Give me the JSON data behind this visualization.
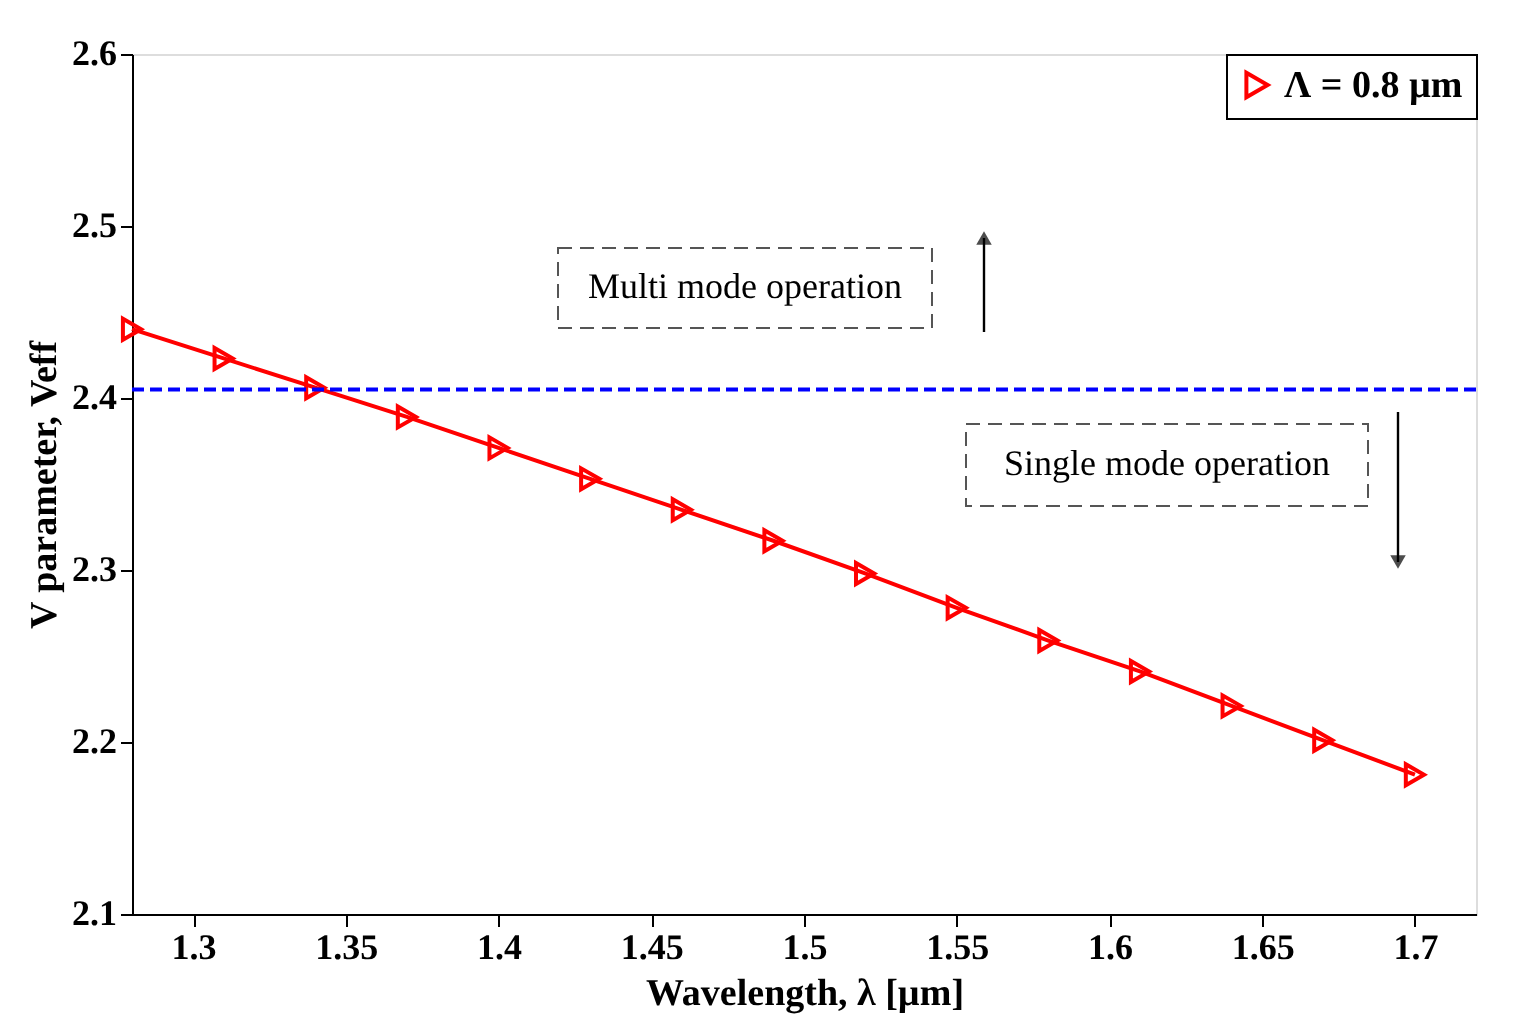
{
  "chart_data": {
    "type": "line",
    "xlabel": "Wavelength, λ [µm]",
    "ylabel": "V parameter, Veff",
    "x": [
      1.28,
      1.31,
      1.34,
      1.37,
      1.4,
      1.43,
      1.46,
      1.49,
      1.52,
      1.55,
      1.58,
      1.61,
      1.64,
      1.67,
      1.7
    ],
    "series": [
      {
        "name": "Λ = 0.8 µm",
        "color": "#ff0000",
        "values": [
          2.44,
          2.423,
          2.406,
          2.389,
          2.371,
          2.353,
          2.335,
          2.317,
          2.298,
          2.278,
          2.259,
          2.241,
          2.221,
          2.201,
          2.181
        ]
      }
    ],
    "xlim": [
      1.28,
      1.72
    ],
    "xticks": [
      1.3,
      1.35,
      1.4,
      1.45,
      1.5,
      1.55,
      1.6,
      1.65,
      1.7
    ],
    "ylim": [
      2.1,
      2.6
    ],
    "yticks": [
      2.1,
      2.2,
      2.3,
      2.4,
      2.5,
      2.6
    ],
    "ref_lines": [
      {
        "axis": "y",
        "value": 2.405,
        "color": "#0000ff",
        "line_style": "dashed"
      }
    ],
    "annotations": [
      "Multi mode operation",
      "Single mode operation"
    ],
    "marker": "triangle",
    "line_style": "solid",
    "legend": "top right",
    "grid": false
  }
}
